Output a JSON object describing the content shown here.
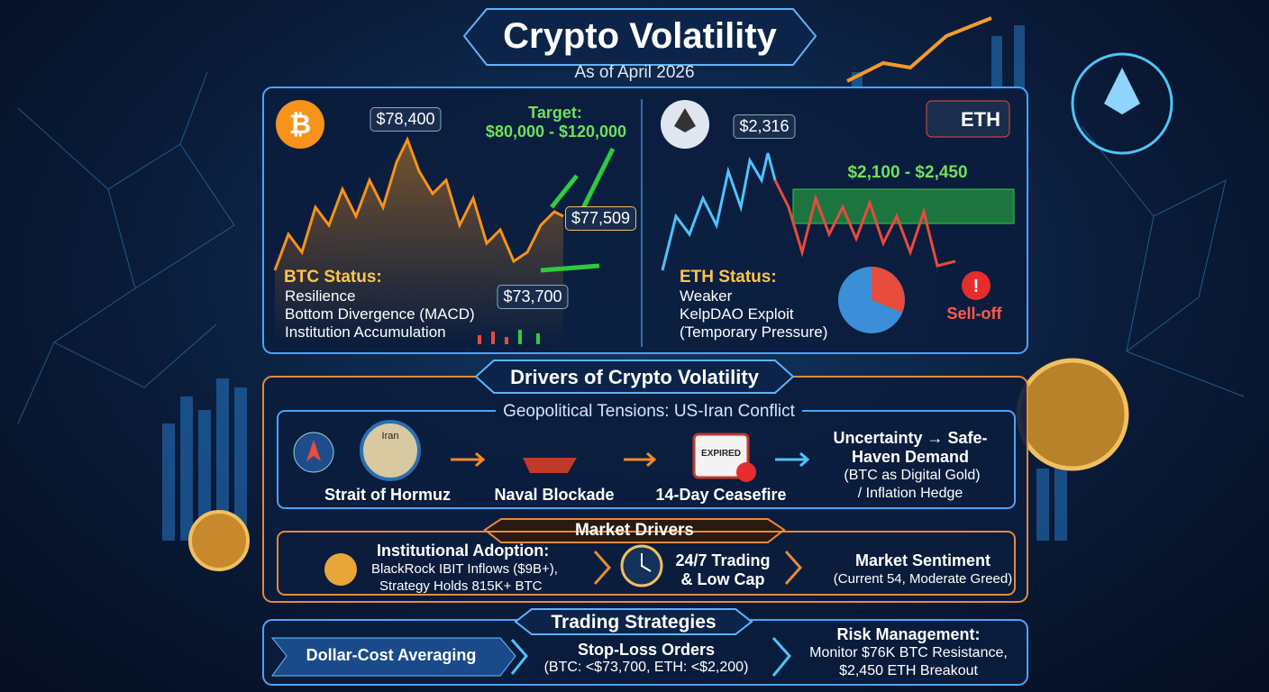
{
  "header": {
    "title": "Crypto Volatility",
    "subtitle": "As of April 2026"
  },
  "btc": {
    "price_high": "$78,400",
    "target_label": "Target:",
    "target_range": "$80,000 - $120,000",
    "price_now": "$77,509",
    "price_low": "$73,700",
    "status_title": "BTC Status:",
    "status_items": [
      "Resilience",
      "Bottom Divergence (MACD)",
      "Institution Accumulation"
    ]
  },
  "eth": {
    "badge": "ETH",
    "price_high": "$2,316",
    "range": "$2,100 - $2,450",
    "status_title": "ETH Status:",
    "status_items": [
      "Weaker",
      "KelpDAO Exploit",
      "(Temporary Pressure)"
    ],
    "alert": "Sell-off"
  },
  "drivers": {
    "title": "Drivers of Crypto Volatility",
    "geopolitical": {
      "title": "Geopolitical Tensions: US-Iran Conflict",
      "icon_labels": [
        "Iran",
        "EXPIRED"
      ],
      "steps": [
        "Strait of Hormuz",
        "Naval Blockade",
        "14-Day Ceasefire"
      ],
      "result": [
        "Uncertainty → Safe-Haven Demand",
        "(BTC as Digital Gold)",
        "/ Inflation Hedge"
      ]
    },
    "market": {
      "title": "Market Drivers",
      "institutional": [
        "Institutional Adoption:",
        "BlackRock IBIT Inflows ($9B+),",
        "Strategy Holds 815K+ BTC"
      ],
      "trading": [
        "24/7 Trading",
        "& Low Cap"
      ],
      "sentiment": [
        "Market Sentiment",
        "(Current 54, Moderate Greed)"
      ]
    }
  },
  "strategies": {
    "title": "Trading Strategies",
    "dca": "Dollar-Cost Averaging",
    "stop_loss": [
      "Stop-Loss Orders",
      "(BTC: <$73,700, ETH: <$2,200)"
    ],
    "risk": [
      "Risk Management:",
      "Monitor $76K BTC Resistance,",
      "$2,450 ETH Breakout"
    ]
  }
}
